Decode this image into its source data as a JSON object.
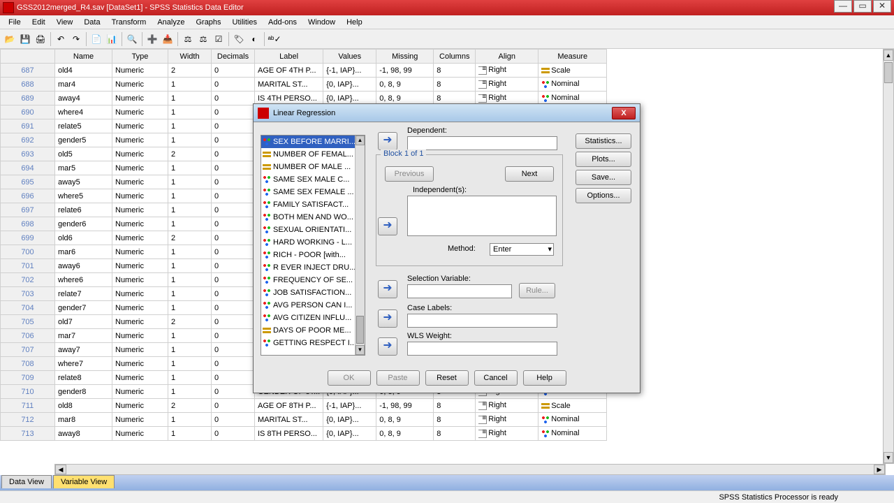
{
  "window": {
    "title": "GSS2012merged_R4.sav [DataSet1] - SPSS Statistics Data Editor"
  },
  "menus": [
    "File",
    "Edit",
    "View",
    "Data",
    "Transform",
    "Analyze",
    "Graphs",
    "Utilities",
    "Add-ons",
    "Window",
    "Help"
  ],
  "columns": [
    "Name",
    "Type",
    "Width",
    "Decimals",
    "Label",
    "Values",
    "Missing",
    "Columns",
    "Align",
    "Measure"
  ],
  "rows": [
    {
      "n": 687,
      "name": "old4",
      "type": "Numeric",
      "w": "2",
      "d": "0",
      "label": "AGE OF 4TH P...",
      "vals": "{-1, IAP}...",
      "miss": "-1, 98, 99",
      "cols": "8",
      "align": "Right",
      "meas": "Scale"
    },
    {
      "n": 688,
      "name": "mar4",
      "type": "Numeric",
      "w": "1",
      "d": "0",
      "label": "MARITAL ST...",
      "vals": "{0, IAP}...",
      "miss": "0, 8, 9",
      "cols": "8",
      "align": "Right",
      "meas": "Nominal"
    },
    {
      "n": 689,
      "name": "away4",
      "type": "Numeric",
      "w": "1",
      "d": "0",
      "label": "IS 4TH PERSO...",
      "vals": "{0, IAP}...",
      "miss": "0, 8, 9",
      "cols": "8",
      "align": "Right",
      "meas": "Nominal"
    },
    {
      "n": 690,
      "name": "where4",
      "type": "Numeric",
      "w": "1",
      "d": "0",
      "label": "",
      "vals": "",
      "miss": "",
      "cols": "",
      "align": "",
      "meas": ""
    },
    {
      "n": 691,
      "name": "relate5",
      "type": "Numeric",
      "w": "1",
      "d": "0",
      "label": "",
      "vals": "",
      "miss": "",
      "cols": "",
      "align": "",
      "meas": ""
    },
    {
      "n": 692,
      "name": "gender5",
      "type": "Numeric",
      "w": "1",
      "d": "0",
      "label": "",
      "vals": "",
      "miss": "",
      "cols": "",
      "align": "",
      "meas": ""
    },
    {
      "n": 693,
      "name": "old5",
      "type": "Numeric",
      "w": "2",
      "d": "0",
      "label": "",
      "vals": "",
      "miss": "",
      "cols": "",
      "align": "",
      "meas": ""
    },
    {
      "n": 694,
      "name": "mar5",
      "type": "Numeric",
      "w": "1",
      "d": "0",
      "label": "",
      "vals": "",
      "miss": "",
      "cols": "",
      "align": "",
      "meas": ""
    },
    {
      "n": 695,
      "name": "away5",
      "type": "Numeric",
      "w": "1",
      "d": "0",
      "label": "",
      "vals": "",
      "miss": "",
      "cols": "",
      "align": "",
      "meas": ""
    },
    {
      "n": 696,
      "name": "where5",
      "type": "Numeric",
      "w": "1",
      "d": "0",
      "label": "",
      "vals": "",
      "miss": "",
      "cols": "",
      "align": "",
      "meas": ""
    },
    {
      "n": 697,
      "name": "relate6",
      "type": "Numeric",
      "w": "1",
      "d": "0",
      "label": "",
      "vals": "",
      "miss": "",
      "cols": "",
      "align": "",
      "meas": ""
    },
    {
      "n": 698,
      "name": "gender6",
      "type": "Numeric",
      "w": "1",
      "d": "0",
      "label": "",
      "vals": "",
      "miss": "",
      "cols": "",
      "align": "",
      "meas": ""
    },
    {
      "n": 699,
      "name": "old6",
      "type": "Numeric",
      "w": "2",
      "d": "0",
      "label": "",
      "vals": "",
      "miss": "",
      "cols": "",
      "align": "",
      "meas": ""
    },
    {
      "n": 700,
      "name": "mar6",
      "type": "Numeric",
      "w": "1",
      "d": "0",
      "label": "",
      "vals": "",
      "miss": "",
      "cols": "",
      "align": "",
      "meas": ""
    },
    {
      "n": 701,
      "name": "away6",
      "type": "Numeric",
      "w": "1",
      "d": "0",
      "label": "",
      "vals": "",
      "miss": "",
      "cols": "",
      "align": "",
      "meas": ""
    },
    {
      "n": 702,
      "name": "where6",
      "type": "Numeric",
      "w": "1",
      "d": "0",
      "label": "",
      "vals": "",
      "miss": "",
      "cols": "",
      "align": "",
      "meas": ""
    },
    {
      "n": 703,
      "name": "relate7",
      "type": "Numeric",
      "w": "1",
      "d": "0",
      "label": "",
      "vals": "",
      "miss": "",
      "cols": "",
      "align": "",
      "meas": ""
    },
    {
      "n": 704,
      "name": "gender7",
      "type": "Numeric",
      "w": "1",
      "d": "0",
      "label": "",
      "vals": "",
      "miss": "",
      "cols": "",
      "align": "",
      "meas": ""
    },
    {
      "n": 705,
      "name": "old7",
      "type": "Numeric",
      "w": "2",
      "d": "0",
      "label": "",
      "vals": "",
      "miss": "",
      "cols": "",
      "align": "",
      "meas": ""
    },
    {
      "n": 706,
      "name": "mar7",
      "type": "Numeric",
      "w": "1",
      "d": "0",
      "label": "",
      "vals": "",
      "miss": "",
      "cols": "",
      "align": "",
      "meas": ""
    },
    {
      "n": 707,
      "name": "away7",
      "type": "Numeric",
      "w": "1",
      "d": "0",
      "label": "",
      "vals": "",
      "miss": "",
      "cols": "",
      "align": "",
      "meas": ""
    },
    {
      "n": 708,
      "name": "where7",
      "type": "Numeric",
      "w": "1",
      "d": "0",
      "label": "",
      "vals": "",
      "miss": "",
      "cols": "",
      "align": "",
      "meas": ""
    },
    {
      "n": 709,
      "name": "relate8",
      "type": "Numeric",
      "w": "1",
      "d": "0",
      "label": "",
      "vals": "",
      "miss": "",
      "cols": "",
      "align": "",
      "meas": ""
    },
    {
      "n": 710,
      "name": "gender8",
      "type": "Numeric",
      "w": "1",
      "d": "0",
      "label": "GENDER OF 8T...",
      "vals": "{0, IAP}...",
      "miss": "0, 8, 9",
      "cols": "8",
      "align": "Right",
      "meas": "Nominal"
    },
    {
      "n": 711,
      "name": "old8",
      "type": "Numeric",
      "w": "2",
      "d": "0",
      "label": "AGE OF 8TH P...",
      "vals": "{-1, IAP}...",
      "miss": "-1, 98, 99",
      "cols": "8",
      "align": "Right",
      "meas": "Scale"
    },
    {
      "n": 712,
      "name": "mar8",
      "type": "Numeric",
      "w": "1",
      "d": "0",
      "label": "MARITAL ST...",
      "vals": "{0, IAP}...",
      "miss": "0, 8, 9",
      "cols": "8",
      "align": "Right",
      "meas": "Nominal"
    },
    {
      "n": 713,
      "name": "away8",
      "type": "Numeric",
      "w": "1",
      "d": "0",
      "label": "IS 8TH PERSO...",
      "vals": "{0, IAP}...",
      "miss": "0, 8, 9",
      "cols": "8",
      "align": "Right",
      "meas": "Nominal"
    }
  ],
  "tabs": {
    "data": "Data View",
    "var": "Variable View"
  },
  "status": "SPSS Statistics Processor is ready",
  "dialog": {
    "title": "Linear Regression",
    "vars": [
      {
        "t": "nom",
        "l": "SEX BEFORE MARRI..."
      },
      {
        "t": "sc",
        "l": "NUMBER OF FEMAL..."
      },
      {
        "t": "sc",
        "l": "NUMBER OF MALE ..."
      },
      {
        "t": "nom",
        "l": "SAME SEX MALE C..."
      },
      {
        "t": "nom",
        "l": "SAME SEX FEMALE ..."
      },
      {
        "t": "nom",
        "l": "FAMILY SATISFACT..."
      },
      {
        "t": "nom",
        "l": "BOTH MEN AND WO..."
      },
      {
        "t": "nom",
        "l": "SEXUAL ORIENTATI..."
      },
      {
        "t": "nom",
        "l": "HARD WORKING - L..."
      },
      {
        "t": "nom",
        "l": "RICH - POOR [with..."
      },
      {
        "t": "nom",
        "l": "R EVER INJECT DRU..."
      },
      {
        "t": "nom",
        "l": "FREQUENCY OF SE..."
      },
      {
        "t": "nom",
        "l": "JOB SATISFACTION..."
      },
      {
        "t": "nom",
        "l": "AVG PERSON CAN I..."
      },
      {
        "t": "nom",
        "l": "AVG CITIZEN INFLU..."
      },
      {
        "t": "sc",
        "l": "DAYS OF POOR ME..."
      },
      {
        "t": "nom",
        "l": "GETTING RESPECT I..."
      }
    ],
    "lbls": {
      "dep": "Dependent:",
      "block": "Block 1 of 1",
      "prev": "Previous",
      "next": "Next",
      "indep": "Independent(s):",
      "method": "Method:",
      "methodv": "Enter",
      "selvar": "Selection Variable:",
      "rule": "Rule...",
      "casel": "Case Labels:",
      "wls": "WLS Weight:"
    },
    "side": [
      "Statistics...",
      "Plots...",
      "Save...",
      "Options..."
    ],
    "bottom": [
      "OK",
      "Paste",
      "Reset",
      "Cancel",
      "Help"
    ]
  }
}
